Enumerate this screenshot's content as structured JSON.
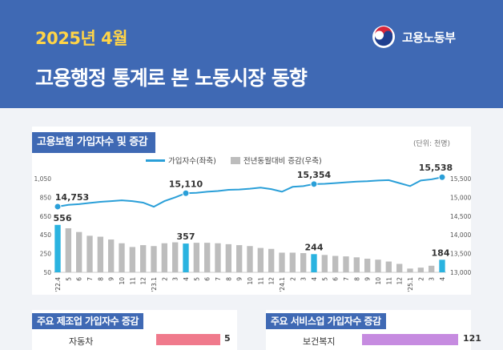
{
  "header": {
    "date": "2025년 4월",
    "title": "고용행정 통계로 본 노동시장 동향",
    "ministry": "고용노동부"
  },
  "panel": {
    "title": "고용보험 가입자수 및 증감",
    "unit": "(단위: 천명)",
    "legend_line": "가입자수(좌축)",
    "legend_bar": "전년동월대비 증감(우축)"
  },
  "chart_data": {
    "type": "bar+line",
    "title": "고용보험 가입자수 및 증감",
    "unit": "(단위: 천명)",
    "categories": [
      "'22.4",
      "5",
      "6",
      "7",
      "8",
      "9",
      "10",
      "11",
      "12",
      "'23.1",
      "2",
      "3",
      "4",
      "5",
      "6",
      "7",
      "8",
      "9",
      "10",
      "11",
      "12",
      "'24.1",
      "2",
      "3",
      "4",
      "5",
      "6",
      "7",
      "8",
      "9",
      "10",
      "11",
      "12",
      "'25.1",
      "2",
      "3",
      "4"
    ],
    "series": [
      {
        "name": "전년동월대비 증감(우축)",
        "axis": "left",
        "type": "bar",
        "values": [
          556,
          520,
          480,
          440,
          430,
          400,
          360,
          320,
          340,
          330,
          360,
          370,
          357,
          365,
          365,
          360,
          350,
          340,
          330,
          310,
          300,
          260,
          260,
          255,
          244,
          235,
          225,
          220,
          210,
          195,
          185,
          165,
          140,
          90,
          100,
          120,
          184
        ],
        "highlighted": [
          0,
          12,
          24,
          36
        ]
      },
      {
        "name": "가입자수(좌축)",
        "axis": "right",
        "type": "line",
        "values": [
          14753,
          14800,
          14820,
          14850,
          14880,
          14900,
          14920,
          14900,
          14860,
          14750,
          14900,
          15000,
          15110,
          15120,
          15150,
          15170,
          15200,
          15210,
          15230,
          15260,
          15220,
          15150,
          15280,
          15300,
          15354,
          15360,
          15380,
          15400,
          15420,
          15430,
          15450,
          15460,
          15380,
          15300,
          15450,
          15480,
          15538
        ],
        "highlighted": [
          0,
          12,
          24,
          36
        ]
      }
    ],
    "left_axis": {
      "min": 50,
      "max": 1050,
      "ticks": [
        50,
        250,
        450,
        650,
        850,
        1050
      ]
    },
    "right_axis": {
      "min": 13000,
      "max": 15500,
      "ticks": [
        13000,
        13500,
        14000,
        14500,
        15000,
        15500
      ]
    },
    "bar_labels": [
      "556",
      "357",
      "244",
      "184"
    ],
    "line_labels": [
      "14,753",
      "15,110",
      "15,354",
      "15,538"
    ]
  },
  "manufacturing": {
    "title": "주요 제조업 가입자수 증감",
    "first_label": "자동차",
    "first_value": "5"
  },
  "services": {
    "title": "주요 서비스업 가입자수 증감",
    "first_label": "보건복지",
    "first_value": "121"
  },
  "colors": {
    "header_bg": "#3f69b4",
    "accent_yellow": "#ffd447",
    "line": "#2a9fd8",
    "bar": "#bdbdbd",
    "bar_highlight": "#2ab3e0",
    "manufacturing_bar": "#f07a8c",
    "services_bar": "#c68be0"
  }
}
